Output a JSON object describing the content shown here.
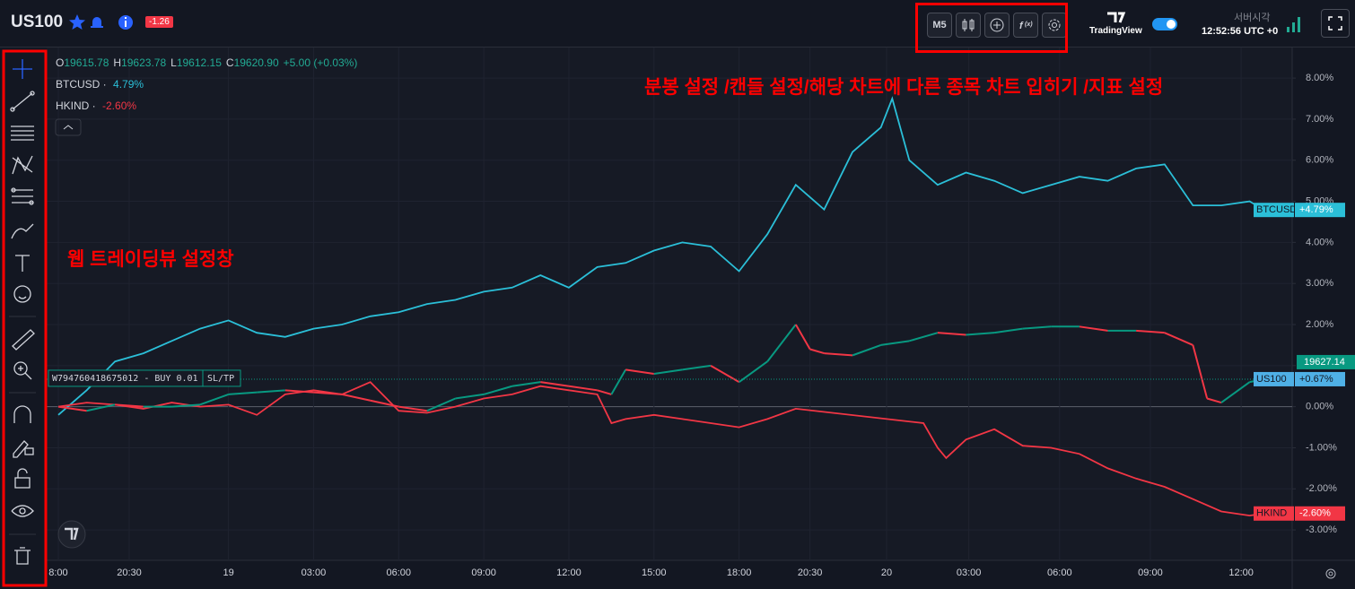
{
  "header": {
    "symbol": "US100",
    "badge": "-1.26",
    "interval": "M5",
    "brand": "TradingView",
    "server_time_label": "서버시각",
    "server_time": "12:52:56 UTC +0"
  },
  "annotations": {
    "top": "분봉 설정 /캔들 설정/해당 차트에 다른 종목 차트 입히기 /지표 설정",
    "left": "웹 트레이딩뷰 설정창"
  },
  "legend": {
    "ohlc": [
      {
        "label": "O",
        "value": "19615.78"
      },
      {
        "label": "H",
        "value": "19623.78"
      },
      {
        "label": "L",
        "value": "19612.15"
      },
      {
        "label": "C",
        "value": "19620.90"
      }
    ],
    "change": "+5.00 (+0.03%)"
  },
  "order": {
    "label": "W794760418675012 - BUY 0.01",
    "button": "SL/TP"
  },
  "chart_data": {
    "type": "line",
    "xlim": [
      -0.41,
      43.5
    ],
    "xticks": [
      {
        "value": 0,
        "label": "8:00"
      },
      {
        "value": 2.5,
        "label": "20:30"
      },
      {
        "value": 6,
        "label": "19"
      },
      {
        "value": 9,
        "label": "03:00"
      },
      {
        "value": 12,
        "label": "06:00"
      },
      {
        "value": 15,
        "label": "09:00"
      },
      {
        "value": 18,
        "label": "12:00"
      },
      {
        "value": 21,
        "label": "15:00"
      },
      {
        "value": 24,
        "label": "18:00"
      },
      {
        "value": 26.5,
        "label": "20:30"
      },
      {
        "value": 29.2,
        "label": "20"
      },
      {
        "value": 32.1,
        "label": "03:00"
      },
      {
        "value": 35.3,
        "label": "06:00"
      },
      {
        "value": 38.5,
        "label": "09:00"
      },
      {
        "value": 41.7,
        "label": "12:00"
      }
    ],
    "ylim": [
      -3.74,
      8.81
    ],
    "yticks": [
      {
        "value": -3,
        "label": "-3.00%"
      },
      {
        "value": -2,
        "label": "-2.00%"
      },
      {
        "value": -1,
        "label": "-1.00%"
      },
      {
        "value": 0,
        "label": "0.00%"
      },
      {
        "value": 1,
        "label": "1.00%"
      },
      {
        "value": 2,
        "label": "2.00%"
      },
      {
        "value": 3,
        "label": "3.00%"
      },
      {
        "value": 4,
        "label": "4.00%"
      },
      {
        "value": 5,
        "label": "5.00%"
      },
      {
        "value": 6,
        "label": "6.00%"
      },
      {
        "value": 7,
        "label": "7.00%"
      },
      {
        "value": 8,
        "label": "8.00%"
      }
    ],
    "grid": true,
    "series": [
      {
        "name": "BTCUSD",
        "color": "#2bbfd8",
        "legend_label": "4.79%",
        "last": {
          "value": 4.79,
          "label": "+4.79%"
        },
        "x": [
          0,
          1,
          2,
          3,
          4,
          5,
          6,
          7,
          8,
          9,
          10,
          11,
          12,
          13,
          14,
          15,
          16,
          17,
          18,
          19,
          20,
          21,
          22,
          23,
          24,
          25,
          26,
          27,
          28,
          29,
          29.4,
          30,
          31,
          32,
          33,
          34,
          35,
          36,
          37,
          38,
          39,
          40,
          41,
          42,
          42.5
        ],
        "values": [
          -0.2,
          0.4,
          1.1,
          1.3,
          1.6,
          1.9,
          2.1,
          1.8,
          1.7,
          1.9,
          2.0,
          2.2,
          2.3,
          2.5,
          2.6,
          2.8,
          2.9,
          3.2,
          2.9,
          3.4,
          3.5,
          3.8,
          4.0,
          3.9,
          3.3,
          4.2,
          5.4,
          4.8,
          6.2,
          6.8,
          7.5,
          6.0,
          5.4,
          5.7,
          5.5,
          5.2,
          5.4,
          5.6,
          5.5,
          5.8,
          5.9,
          4.9,
          4.9,
          5.0,
          4.79
        ]
      },
      {
        "name": "HKIND",
        "color": "#f23645",
        "legend_label": "-2.60%",
        "last": {
          "value": -2.6,
          "label": "-2.60%"
        },
        "x": [
          0,
          1,
          2,
          3,
          4,
          5,
          6,
          7,
          8,
          9,
          10,
          11,
          12,
          13,
          14,
          15,
          16,
          17,
          18,
          19,
          19.5,
          20,
          21,
          22,
          23,
          24,
          25,
          26,
          30.5,
          31,
          31.3,
          32,
          33,
          34,
          35,
          36,
          37,
          38,
          39,
          40,
          41,
          42,
          42.5
        ],
        "values": [
          0.0,
          0.1,
          0.05,
          -0.05,
          0.1,
          0.0,
          0.05,
          -0.2,
          0.3,
          0.4,
          0.3,
          0.6,
          -0.1,
          -0.15,
          0.0,
          0.2,
          0.3,
          0.5,
          0.4,
          0.3,
          -0.4,
          -0.3,
          -0.2,
          -0.3,
          -0.4,
          -0.5,
          -0.3,
          -0.05,
          -0.4,
          -1.0,
          -1.25,
          -0.8,
          -0.55,
          -0.95,
          -1.0,
          -1.15,
          -1.5,
          -1.75,
          -1.95,
          -2.25,
          -2.55,
          -2.65,
          -2.6
        ]
      },
      {
        "name": "US100",
        "color": "#089981",
        "down_color": "#f23645",
        "price": "19627.14",
        "last": {
          "value": 0.67,
          "label": "+0.67%"
        },
        "x": [
          0,
          1,
          2,
          3,
          4,
          5,
          6,
          7,
          8,
          9,
          10,
          11,
          12,
          13,
          14,
          15,
          16,
          17,
          18,
          19,
          19.5,
          20,
          21,
          22,
          23,
          24,
          25,
          26,
          26.5,
          27,
          28,
          29,
          30,
          31,
          32,
          33,
          34,
          35,
          36,
          37,
          38,
          39,
          40,
          40.5,
          41,
          42,
          42.5
        ],
        "values": [
          0.0,
          -0.1,
          0.05,
          0.0,
          0.0,
          0.05,
          0.3,
          0.35,
          0.4,
          0.35,
          0.3,
          0.15,
          0.0,
          -0.1,
          0.2,
          0.3,
          0.5,
          0.6,
          0.5,
          0.4,
          0.3,
          0.9,
          0.8,
          0.9,
          1.0,
          0.6,
          1.1,
          2.0,
          1.4,
          1.3,
          1.25,
          1.5,
          1.6,
          1.8,
          1.75,
          1.8,
          1.9,
          1.95,
          1.95,
          1.85,
          1.85,
          1.8,
          1.5,
          0.2,
          0.1,
          0.6,
          0.67
        ]
      }
    ]
  }
}
